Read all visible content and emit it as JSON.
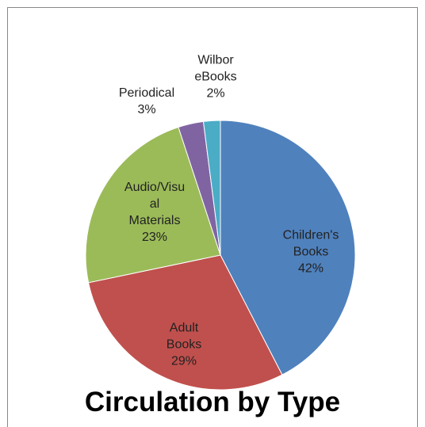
{
  "chart_data": {
    "type": "pie",
    "title": "Circulation by Type",
    "categories": [
      "Children's Books",
      "Adult Books",
      "Audio/Visual Materials",
      "Periodical",
      "Wilbor eBooks"
    ],
    "values": [
      42,
      29,
      23,
      3,
      2
    ],
    "value_labels": [
      "42%",
      "29%",
      "23%",
      "3%",
      "2%"
    ],
    "colors": [
      "#4f81bd",
      "#c0504d",
      "#9bbb59",
      "#8064a2",
      "#4bacc6"
    ]
  }
}
